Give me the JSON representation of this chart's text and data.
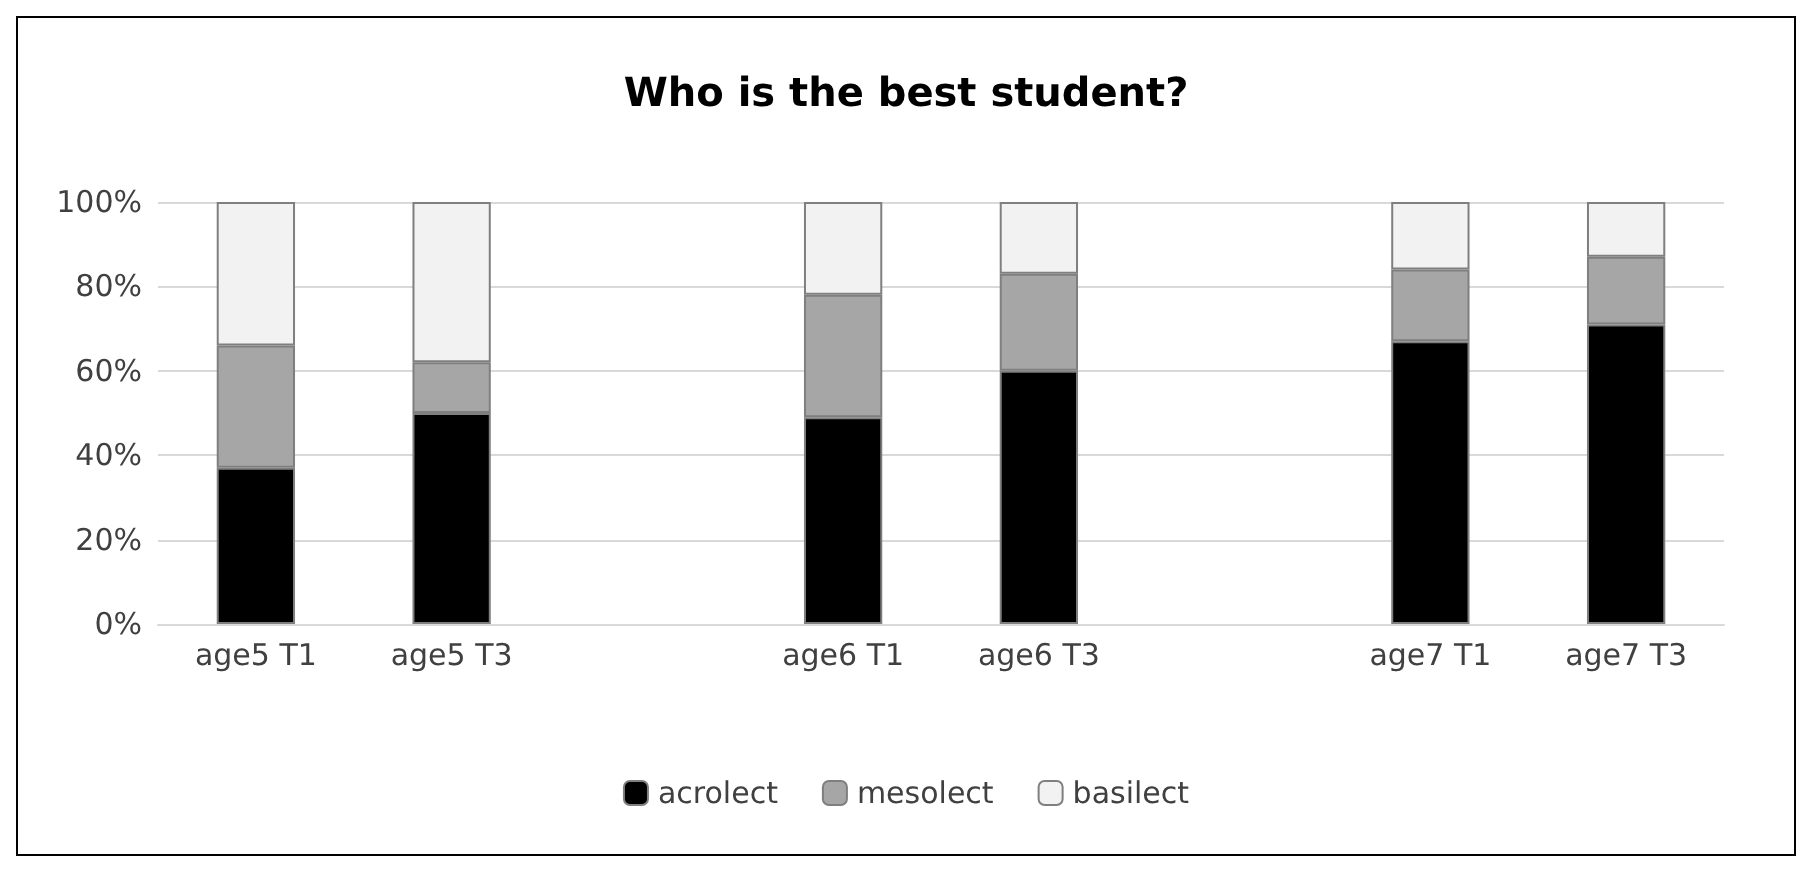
{
  "chart_data": {
    "type": "bar",
    "title": "Who is the best student?",
    "stacked": true,
    "categories": [
      "age5 T1",
      "age5 T3",
      null,
      "age6 T1",
      "age6 T3",
      null,
      "age7 T1",
      "age7 T3"
    ],
    "series": [
      {
        "name": "acrolect",
        "color": "#000000",
        "values": [
          37,
          50,
          null,
          49,
          60,
          null,
          67,
          71
        ]
      },
      {
        "name": "mesolect",
        "color": "#a6a6a6",
        "values": [
          29,
          12,
          null,
          29,
          23,
          null,
          17,
          16
        ]
      },
      {
        "name": "basilect",
        "color": "#f2f2f2",
        "values": [
          34,
          38,
          null,
          22,
          17,
          null,
          16,
          13
        ]
      }
    ],
    "ylim": [
      0,
      100
    ],
    "yticks": [
      {
        "value": 0,
        "label": "0%"
      },
      {
        "value": 20,
        "label": "20%"
      },
      {
        "value": 40,
        "label": "40%"
      },
      {
        "value": 60,
        "label": "60%"
      },
      {
        "value": 80,
        "label": "80%"
      },
      {
        "value": 100,
        "label": "100%"
      }
    ],
    "grid": "y",
    "legend": "bottom"
  }
}
